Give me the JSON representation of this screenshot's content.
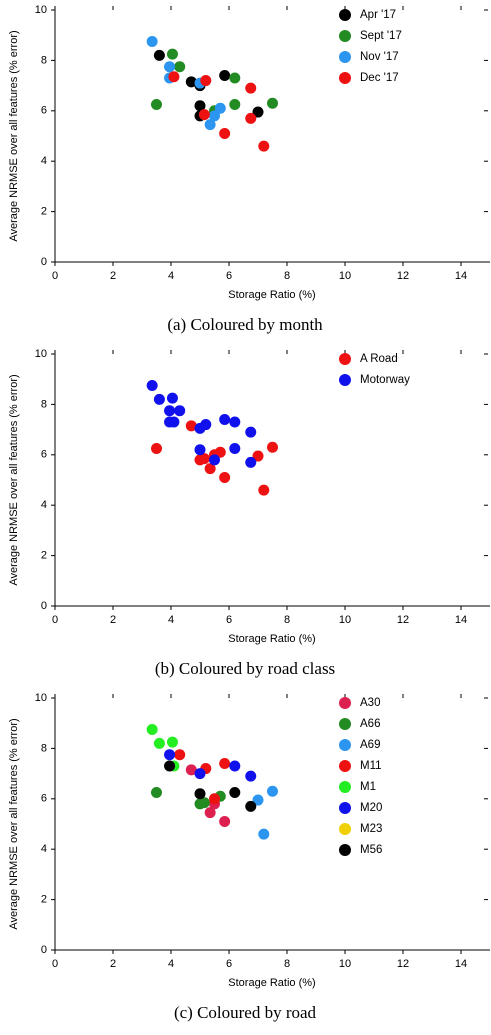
{
  "chart_data": [
    {
      "type": "scatter",
      "xlabel": "Storage Ratio (%)",
      "ylabel": "Average NRMSE over all features (% error)",
      "caption": "(a)  Coloured by month",
      "xlim": [
        0,
        15
      ],
      "ylim": [
        0,
        10
      ],
      "xticks": [
        0,
        2,
        4,
        6,
        8,
        10,
        12,
        14
      ],
      "yticks": [
        0,
        2,
        4,
        6,
        8,
        10
      ],
      "legend": "upper right",
      "series": [
        {
          "name": "Apr  '17",
          "color": "#000000",
          "x": [
            3.6,
            4.7,
            5.0,
            5.85,
            5.0,
            5.0,
            7.0
          ],
          "values": [
            8.2,
            7.15,
            7.0,
            7.4,
            6.2,
            5.8,
            5.95
          ]
        },
        {
          "name": "Sept  '17",
          "color": "#228b22",
          "x": [
            3.5,
            4.05,
            4.3,
            5.5,
            6.2,
            6.2,
            7.5
          ],
          "values": [
            6.25,
            8.25,
            7.75,
            6.0,
            7.3,
            6.25,
            6.3
          ]
        },
        {
          "name": "Nov  '17",
          "color": "#2b95f0",
          "x": [
            3.35,
            3.95,
            3.95,
            5.35,
            5.5,
            5.7,
            5.0
          ],
          "values": [
            8.75,
            7.75,
            7.3,
            5.45,
            5.8,
            6.1,
            7.1
          ]
        },
        {
          "name": "Dec  '17",
          "color": "#ee1111",
          "x": [
            4.1,
            5.2,
            5.15,
            5.85,
            6.75,
            6.75,
            7.2
          ],
          "values": [
            7.35,
            7.2,
            5.85,
            5.1,
            6.9,
            5.7,
            4.6
          ]
        }
      ]
    },
    {
      "type": "scatter",
      "xlabel": "Storage Ratio (%)",
      "ylabel": "Average NRMSE over all features (% error)",
      "caption": "(b)  Coloured by road class",
      "xlim": [
        0,
        15
      ],
      "ylim": [
        0,
        10
      ],
      "xticks": [
        0,
        2,
        4,
        6,
        8,
        10,
        12,
        14
      ],
      "yticks": [
        0,
        2,
        4,
        6,
        8,
        10
      ],
      "legend": "upper right",
      "series": [
        {
          "name": "A  Road",
          "color": "#ee1111",
          "x": [
            3.5,
            4.7,
            5.0,
            5.15,
            5.35,
            5.5,
            5.7,
            5.85,
            7.0,
            7.5,
            7.2
          ],
          "values": [
            6.25,
            7.15,
            5.8,
            5.85,
            5.45,
            6.0,
            6.1,
            5.1,
            5.95,
            6.3,
            4.6
          ]
        },
        {
          "name": "Motorway",
          "color": "#1111ee",
          "x": [
            3.35,
            3.6,
            3.95,
            4.05,
            4.1,
            4.3,
            3.95,
            5.0,
            5.2,
            5.85,
            6.2,
            6.75,
            5.0,
            5.5,
            6.2,
            6.75
          ],
          "values": [
            8.75,
            8.2,
            7.75,
            8.25,
            7.3,
            7.75,
            7.3,
            7.05,
            7.2,
            7.4,
            7.3,
            6.9,
            6.2,
            5.8,
            6.25,
            5.7
          ]
        }
      ]
    },
    {
      "type": "scatter",
      "xlabel": "Storage Ratio (%)",
      "ylabel": "Average NRMSE over all features (% error)",
      "caption": "(c)  Coloured by road",
      "xlim": [
        0,
        15
      ],
      "ylim": [
        0,
        10
      ],
      "xticks": [
        0,
        2,
        4,
        6,
        8,
        10,
        12,
        14
      ],
      "yticks": [
        0,
        2,
        4,
        6,
        8,
        10
      ],
      "legend": "upper right",
      "series": [
        {
          "name": "A30",
          "color": "#dc2050",
          "x": [
            4.7,
            5.35,
            5.5,
            5.85
          ],
          "values": [
            7.15,
            5.45,
            5.8,
            5.1
          ]
        },
        {
          "name": "A66",
          "color": "#228b22",
          "x": [
            3.5,
            5.0,
            5.15,
            5.7
          ],
          "values": [
            6.25,
            5.8,
            5.85,
            6.1
          ]
        },
        {
          "name": "A69",
          "color": "#2b95f0",
          "x": [
            7.0,
            7.5,
            7.2
          ],
          "values": [
            5.95,
            6.3,
            4.6
          ]
        },
        {
          "name": "M11",
          "color": "#ee1111",
          "x": [
            4.3,
            5.2,
            5.85,
            5.5
          ],
          "values": [
            7.75,
            7.2,
            7.4,
            6.0
          ]
        },
        {
          "name": "M1",
          "color": "#22ee22",
          "x": [
            3.35,
            3.6,
            4.05,
            4.1
          ],
          "values": [
            8.75,
            8.2,
            8.25,
            7.3
          ]
        },
        {
          "name": "M20",
          "color": "#1111ee",
          "x": [
            3.95,
            5.0,
            6.2,
            6.75
          ],
          "values": [
            7.75,
            7.0,
            7.3,
            6.9
          ]
        },
        {
          "name": "M23",
          "color": "#f0d000",
          "x": [],
          "values": []
        },
        {
          "name": "M56",
          "color": "#000000",
          "x": [
            3.95,
            5.0,
            6.2,
            6.75
          ],
          "values": [
            7.3,
            6.2,
            6.25,
            5.7
          ]
        }
      ]
    }
  ]
}
